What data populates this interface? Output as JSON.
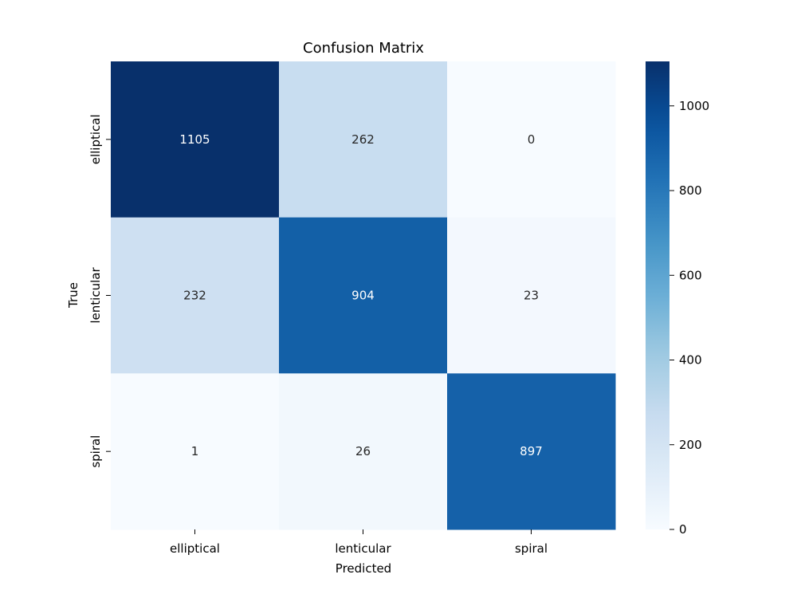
{
  "chart_data": {
    "type": "heatmap",
    "title": "Confusion Matrix",
    "xlabel": "Predicted",
    "ylabel": "True",
    "x_categories": [
      "elliptical",
      "lenticular",
      "spiral"
    ],
    "y_categories": [
      "elliptical",
      "lenticular",
      "spiral"
    ],
    "values": [
      [
        1105,
        262,
        0
      ],
      [
        232,
        904,
        23
      ],
      [
        1,
        26,
        897
      ]
    ],
    "colormap": "Blues",
    "color_range": [
      0,
      1105
    ],
    "colorbar_ticks": [
      0,
      200,
      400,
      600,
      800,
      1000
    ],
    "colorbar_tick_labels": [
      "0",
      "200",
      "400",
      "600",
      "800",
      "1000"
    ]
  }
}
